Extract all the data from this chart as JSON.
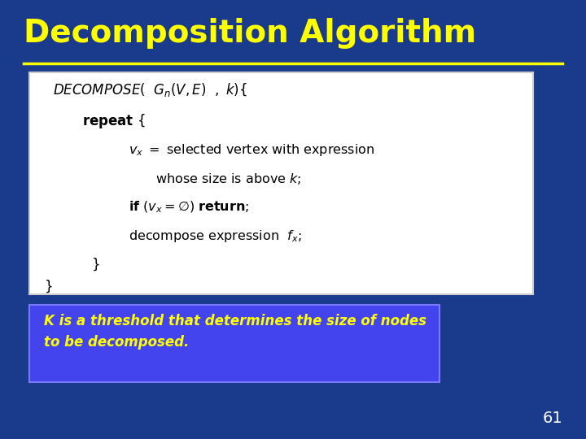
{
  "title": "Decomposition Algorithm",
  "title_color": "#FFFF00",
  "title_fontsize": 28,
  "background_color": "#1a3a8c",
  "separator_color": "#FFFF00",
  "slide_number": "61",
  "slide_number_color": "#ffffff",
  "code_box_bg": "#ffffff",
  "code_box_border": "#cccccc",
  "annotation_box_bg": "#4444ee",
  "annotation_box_border": "#7777ff",
  "annotation_text": "K is a threshold that determines the size of nodes\nto be decomposed.",
  "annotation_text_color": "#FFFF00"
}
